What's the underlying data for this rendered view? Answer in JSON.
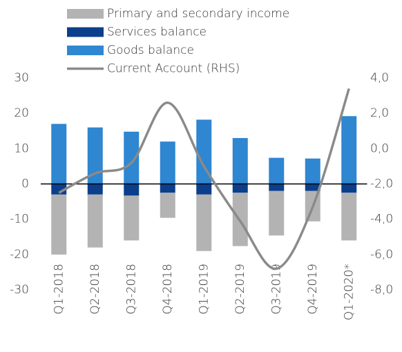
{
  "chart_data": {
    "type": "bar",
    "categories": [
      "Q1-2018",
      "Q2-2018",
      "Q3-2018",
      "Q4-2018",
      "Q1-2019",
      "Q2-2019",
      "Q3-2019",
      "Q4-2019",
      "Q1-2020*"
    ],
    "series": [
      {
        "name": "Primary and secondary income",
        "color": "#b3b3b3",
        "values": [
          -17,
          -15,
          -12.7,
          -7.1,
          -16,
          -15.1,
          -12.6,
          -8.6,
          -13.5
        ]
      },
      {
        "name": "Services balance",
        "color": "#0b3f8c",
        "values": [
          -3,
          -3,
          -3.3,
          -2.5,
          -3,
          -2.5,
          -2,
          -2,
          -2.5
        ]
      },
      {
        "name": "Goods balance",
        "color": "#2f86d1",
        "values": [
          17,
          16,
          14.8,
          12,
          18.2,
          13,
          7.4,
          7.2,
          19.2
        ]
      },
      {
        "name": "Current Account (RHS)",
        "color": "#8a8a8a",
        "type": "line",
        "axis": "y2",
        "values": [
          -2.5,
          -1.4,
          -0.8,
          2.6,
          -1.0,
          -4.1,
          -6.8,
          -3.3,
          3.4
        ]
      }
    ],
    "ylim": [
      -30,
      30
    ],
    "yticks": [
      -30,
      -20,
      -10,
      0,
      10,
      20,
      30
    ],
    "y2lim": [
      -8,
      4
    ],
    "y2ticks": [
      {
        "value": -8,
        "label": "-8,0"
      },
      {
        "value": -6,
        "label": "-6,0"
      },
      {
        "value": -4,
        "label": "-4,0"
      },
      {
        "value": -2,
        "label": "-2,0"
      },
      {
        "value": 0,
        "label": "0,0"
      },
      {
        "value": 2,
        "label": "2,0"
      },
      {
        "value": 4,
        "label": "4,0"
      }
    ],
    "grid": false,
    "legend": "top"
  }
}
